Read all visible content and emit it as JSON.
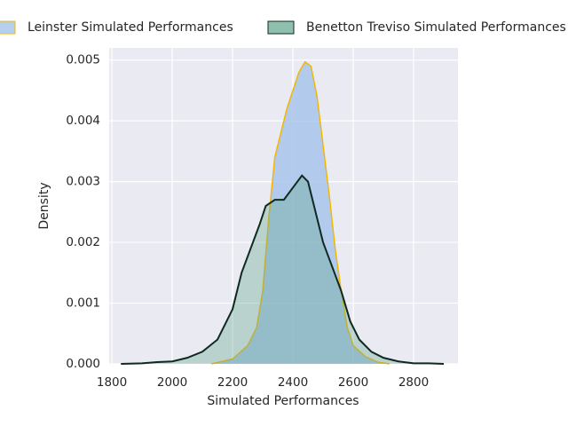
{
  "chart_data": {
    "type": "kde",
    "xlabel": "Simulated Performances",
    "ylabel": "Density",
    "xlim": [
      1791,
      2947
    ],
    "ylim": [
      0,
      0.0052
    ],
    "xticks": [
      1800,
      2000,
      2200,
      2400,
      2600,
      2800
    ],
    "yticks": [
      {
        "value": 0,
        "label": "0.000"
      },
      {
        "value": 0.001,
        "label": "0.001"
      },
      {
        "value": 0.002,
        "label": "0.002"
      },
      {
        "value": 0.003,
        "label": "0.003"
      },
      {
        "value": 0.004,
        "label": "0.004"
      },
      {
        "value": 0.005,
        "label": "0.005"
      }
    ],
    "grid": true,
    "legend": "upper center",
    "series": [
      {
        "name": "Leinster Simulated Performances",
        "color": "#9fbfe8",
        "edgecolor": "#f2b705",
        "x": [
          2130,
          2200,
          2250,
          2280,
          2300,
          2320,
          2340,
          2360,
          2380,
          2400,
          2420,
          2440,
          2460,
          2480,
          2500,
          2520,
          2540,
          2560,
          2580,
          2600,
          2640,
          2680,
          2720
        ],
        "values": [
          0,
          8e-05,
          0.0003,
          0.0006,
          0.0012,
          0.0024,
          0.0034,
          0.0038,
          0.0042,
          0.0045,
          0.0048,
          0.00497,
          0.0049,
          0.0044,
          0.0036,
          0.0028,
          0.0019,
          0.0012,
          0.0006,
          0.0003,
          0.00012,
          3e-05,
          0
        ]
      },
      {
        "name": "Benetton Treviso Simulated Performances",
        "color": "#5fa58a",
        "edgecolor": "#0e2a20",
        "x": [
          1830,
          1900,
          1950,
          2000,
          2050,
          2100,
          2150,
          2200,
          2230,
          2260,
          2290,
          2310,
          2340,
          2370,
          2400,
          2430,
          2450,
          2470,
          2500,
          2530,
          2560,
          2590,
          2620,
          2660,
          2700,
          2750,
          2800,
          2850,
          2900
        ],
        "values": [
          0,
          1e-05,
          3e-05,
          4e-05,
          0.0001,
          0.0002,
          0.0004,
          0.0009,
          0.0015,
          0.0019,
          0.0023,
          0.0026,
          0.0027,
          0.0027,
          0.0029,
          0.0031,
          0.003,
          0.0026,
          0.002,
          0.0016,
          0.0012,
          0.0007,
          0.0004,
          0.0002,
          0.0001,
          4e-05,
          1e-05,
          1e-05,
          0
        ]
      }
    ]
  }
}
